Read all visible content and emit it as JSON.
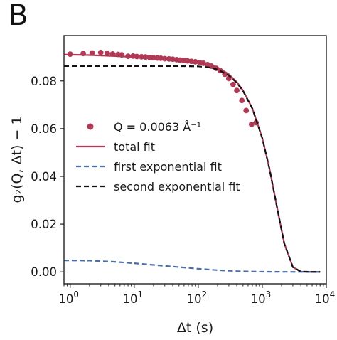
{
  "panel_label": "B",
  "chart_data": {
    "type": "scatter",
    "x_scale": "log",
    "xlabel": "Δt (s)",
    "ylabel": "g₂(Q, Δt) − 1",
    "xlim": [
      0.8,
      10000
    ],
    "ylim": [
      -0.005,
      0.099
    ],
    "x_ticks": [
      {
        "value": 1,
        "base": "10",
        "exp": "0"
      },
      {
        "value": 10,
        "base": "10",
        "exp": "1"
      },
      {
        "value": 100,
        "base": "10",
        "exp": "2"
      },
      {
        "value": 1000,
        "base": "10",
        "exp": "3"
      },
      {
        "value": 10000,
        "base": "10",
        "exp": "4"
      }
    ],
    "y_ticks": [
      {
        "value": 0.0,
        "label": "0.00"
      },
      {
        "value": 0.02,
        "label": "0.02"
      },
      {
        "value": 0.04,
        "label": "0.04"
      },
      {
        "value": 0.06,
        "label": "0.06"
      },
      {
        "value": 0.08,
        "label": "0.08"
      }
    ],
    "grid": false,
    "legend_position": "center-left",
    "series": [
      {
        "name": "Q = 0.0063 Å⁻¹",
        "kind": "markers",
        "color": "#b03a55",
        "x": [
          1.0,
          1.6,
          2.2,
          3.0,
          3.8,
          4.6,
          5.6,
          6.4,
          8,
          9.6,
          11,
          13,
          15,
          17.5,
          20,
          23,
          26,
          30,
          35,
          40,
          46,
          52,
          60,
          68,
          78,
          90,
          105,
          120,
          140,
          160,
          190,
          220,
          260,
          300,
          350,
          400,
          480,
          560,
          680,
          800
        ],
        "y": [
          0.0912,
          0.0915,
          0.0917,
          0.0919,
          0.0916,
          0.0913,
          0.0911,
          0.0909,
          0.0903,
          0.0904,
          0.0902,
          0.0901,
          0.09,
          0.0898,
          0.0897,
          0.0896,
          0.0895,
          0.0893,
          0.0892,
          0.0891,
          0.0889,
          0.0887,
          0.0886,
          0.0884,
          0.0882,
          0.088,
          0.0877,
          0.0874,
          0.0868,
          0.0862,
          0.0853,
          0.0843,
          0.0828,
          0.081,
          0.0785,
          0.076,
          0.0718,
          0.0676,
          0.0618,
          0.0625
        ]
      },
      {
        "name": "total fit",
        "kind": "line",
        "color": "#b03a55",
        "dash": "solid",
        "x": [
          0.8,
          1,
          2,
          5,
          10,
          20,
          50,
          100,
          150,
          200,
          300,
          400,
          500,
          700,
          1000,
          1300,
          1700,
          2200,
          3000,
          4000,
          6000,
          8000
        ],
        "y": [
          0.091,
          0.091,
          0.0908,
          0.0904,
          0.09,
          0.0895,
          0.0887,
          0.0879,
          0.0869,
          0.0857,
          0.0828,
          0.0795,
          0.076,
          0.0685,
          0.056,
          0.043,
          0.027,
          0.012,
          0.002,
          0.0001,
          0.0,
          0.0
        ]
      },
      {
        "name": "first exponential fit",
        "kind": "line",
        "color": "#4a6fa8",
        "dash": "dashed",
        "x": [
          0.8,
          1,
          2,
          5,
          10,
          20,
          50,
          100,
          200,
          400,
          800,
          1500,
          3000,
          6000,
          8000
        ],
        "y": [
          0.0048,
          0.0048,
          0.0047,
          0.0042,
          0.0036,
          0.0029,
          0.002,
          0.0013,
          0.0007,
          0.0003,
          0.0001,
          3e-05,
          0.0,
          0.0,
          0.0
        ]
      },
      {
        "name": "second exponential fit",
        "kind": "line",
        "color": "#111111",
        "dash": "dashed",
        "x": [
          0.8,
          1,
          10,
          50,
          100,
          150,
          200,
          300,
          400,
          500,
          700,
          1000,
          1300,
          1700,
          2200,
          3000,
          4000,
          6000,
          8000
        ],
        "y": [
          0.0862,
          0.0862,
          0.0862,
          0.0862,
          0.0861,
          0.0856,
          0.0848,
          0.0823,
          0.0792,
          0.0758,
          0.0684,
          0.056,
          0.043,
          0.027,
          0.012,
          0.002,
          0.0001,
          0.0,
          0.0
        ]
      }
    ]
  }
}
